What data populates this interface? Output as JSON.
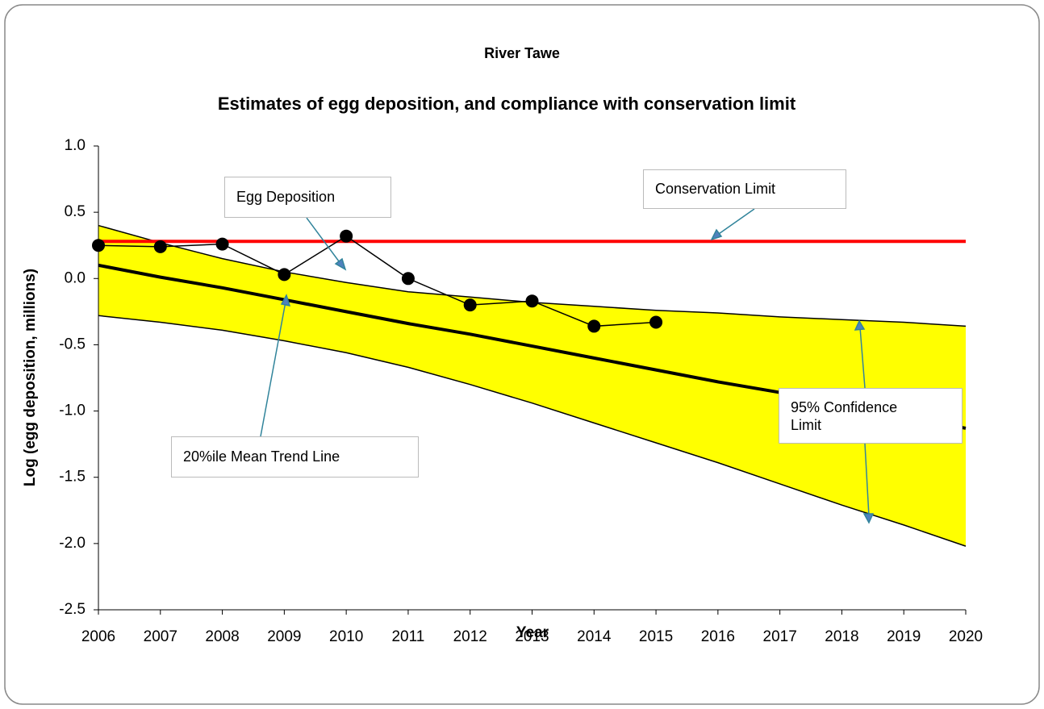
{
  "chart_data": {
    "type": "line",
    "title": "River Tawe",
    "subtitle": "Estimates of egg deposition, and compliance with conservation limit",
    "x_label": "Year",
    "y_label": "Log (egg deposition, millions)",
    "x": [
      2006,
      2007,
      2008,
      2009,
      2010,
      2011,
      2012,
      2013,
      2014,
      2015,
      2016,
      2017,
      2018,
      2019,
      2020
    ],
    "xlim": [
      2006,
      2020
    ],
    "xticks": [
      2006,
      2007,
      2008,
      2009,
      2010,
      2011,
      2012,
      2013,
      2014,
      2015,
      2016,
      2017,
      2018,
      2019,
      2020
    ],
    "ylim": [
      -2.5,
      1.0
    ],
    "yticks": [
      {
        "value": 1.0,
        "label": "1.0"
      },
      0.5,
      {
        "value": 0.0,
        "label": "0.0"
      },
      -0.5,
      {
        "value": -1.0,
        "label": "-1.0"
      },
      -1.5,
      {
        "value": -2.0,
        "label": "-2.0"
      },
      -2.5
    ],
    "grid": false,
    "series": [
      {
        "name": "95% Confidence Limit",
        "kind": "band",
        "color": "#ffff00",
        "upper": [
          0.4,
          0.27,
          0.15,
          0.05,
          -0.03,
          -0.1,
          -0.14,
          -0.18,
          -0.21,
          -0.24,
          -0.26,
          -0.29,
          -0.31,
          -0.33,
          -0.36
        ],
        "lower": [
          -0.28,
          -0.33,
          -0.39,
          -0.47,
          -0.56,
          -0.67,
          -0.8,
          -0.94,
          -1.09,
          -1.24,
          -1.39,
          -1.55,
          -1.71,
          -1.86,
          -2.02
        ]
      },
      {
        "name": "20%ile Mean Trend Line",
        "kind": "line",
        "color": "#000000",
        "values": [
          0.1,
          0.01,
          -0.07,
          -0.16,
          -0.25,
          -0.34,
          -0.42,
          -0.51,
          -0.6,
          -0.69,
          -0.78,
          -0.86,
          -0.95,
          -1.04,
          -1.13
        ]
      },
      {
        "name": "Conservation Limit",
        "kind": "line",
        "color": "#ff0000",
        "values": [
          0.28,
          0.28,
          0.28,
          0.28,
          0.28,
          0.28,
          0.28,
          0.28,
          0.28,
          0.28,
          0.28,
          0.28,
          0.28,
          0.28,
          0.28
        ]
      },
      {
        "name": "Egg Deposition",
        "kind": "markers",
        "color": "#000000",
        "values": [
          0.25,
          0.24,
          0.26,
          0.03,
          0.32,
          0.0,
          -0.2,
          -0.17,
          -0.36,
          -0.33,
          null,
          null,
          null,
          null,
          null
        ]
      }
    ]
  }
}
